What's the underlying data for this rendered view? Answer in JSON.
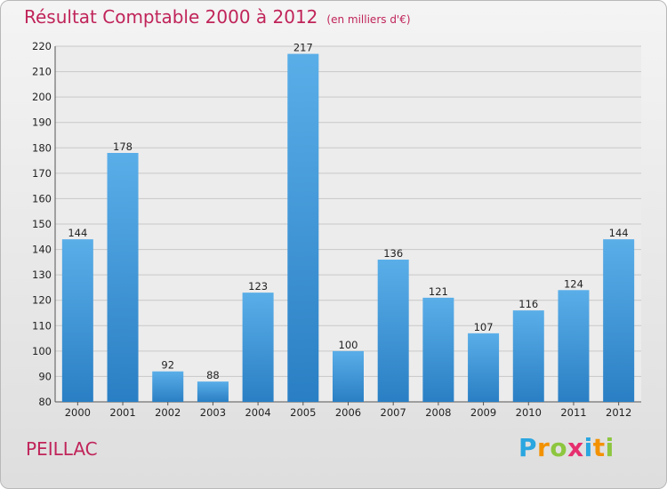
{
  "header": {
    "title": "Résultat Comptable 2000 à 2012",
    "subtitle": "(en milliers d'€)"
  },
  "footer": {
    "region": "PEILLAC",
    "brand": "Proxiti",
    "brand_letters": [
      "P",
      "r",
      "o",
      "x",
      "i",
      "t",
      "i"
    ],
    "brand_colors": [
      "#2aa6e0",
      "#f39200",
      "#8dc63f",
      "#e62f6e",
      "#2aa6e0",
      "#f39200",
      "#8dc63f"
    ]
  },
  "chart_data": {
    "type": "bar",
    "title": "Résultat Comptable 2000 à 2012",
    "subtitle": "(en milliers d'€)",
    "xlabel": "",
    "ylabel": "",
    "categories": [
      "2000",
      "2001",
      "2002",
      "2003",
      "2004",
      "2005",
      "2006",
      "2007",
      "2008",
      "2009",
      "2010",
      "2011",
      "2012"
    ],
    "values": [
      144,
      178,
      92,
      88,
      123,
      217,
      100,
      136,
      121,
      107,
      116,
      124,
      144
    ],
    "ylim": [
      80,
      220
    ],
    "yticks": [
      80,
      90,
      100,
      110,
      120,
      130,
      140,
      150,
      160,
      170,
      180,
      190,
      200,
      210,
      220
    ],
    "grid": true,
    "bar_color": "#3d96d8"
  }
}
